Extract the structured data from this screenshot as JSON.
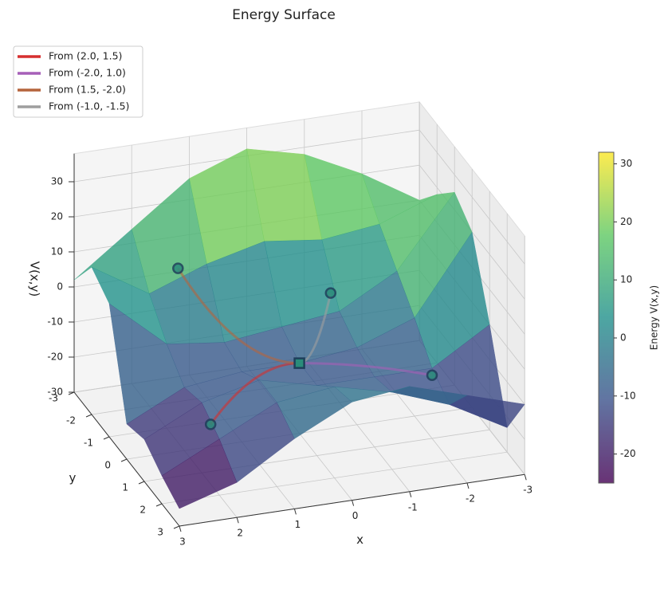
{
  "chart_data": {
    "type": "surface3d",
    "title": "Energy Surface",
    "xlabel": "x",
    "ylabel": "y",
    "zlabel": "V(x,y)",
    "x": [
      -3,
      -2,
      -1,
      0,
      1,
      2,
      3
    ],
    "y": [
      -3,
      -2,
      -1,
      0,
      1,
      2,
      3
    ],
    "z": [
      [
        10,
        20,
        28,
        32,
        26,
        14,
        2
      ],
      [
        18,
        12,
        10,
        12,
        8,
        2,
        12
      ],
      [
        25,
        5,
        -4,
        -6,
        -8,
        -6,
        8
      ],
      [
        20,
        -2,
        -8,
        -10,
        -10,
        -12,
        -20
      ],
      [
        0,
        -10,
        -10,
        -10,
        -6,
        -10,
        -18
      ],
      [
        -23,
        -14,
        -8,
        -4,
        -6,
        -14,
        -22
      ],
      [
        -10,
        -5,
        0,
        -2,
        -10,
        -20,
        -25
      ]
    ],
    "xlim": [
      -3,
      3
    ],
    "ylim": [
      -3,
      3
    ],
    "zlim": [
      -30,
      38
    ],
    "xticks": [
      -3,
      -2,
      -1,
      0,
      1,
      2,
      3
    ],
    "yticks": [
      -3,
      -2,
      -1,
      0,
      1,
      2,
      3
    ],
    "zticks": [
      -30,
      -20,
      -10,
      0,
      10,
      20,
      30
    ],
    "colorbar": {
      "label": "Energy V(x,y)",
      "clim": [
        -25,
        32
      ],
      "ticks": [
        -20,
        -10,
        0,
        10,
        20,
        30
      ]
    },
    "minimum": {
      "x": 0,
      "y": 0,
      "z": -10
    },
    "series": [
      {
        "name": "From (2.0, 1.5)",
        "color": "#d62f2f",
        "x": 2.0,
        "y": 1.5,
        "z": -13
      },
      {
        "name": "From (-2.0, 1.0)",
        "color": "#a65fb8",
        "x": -2.0,
        "y": 1.0,
        "z": -12
      },
      {
        "name": "From (1.5, -2.0)",
        "color": "#b5643c",
        "x": 1.5,
        "y": -2.0,
        "z": 8
      },
      {
        "name": "From (-1.0, -1.5)",
        "color": "#9e9e9e",
        "x": -1.0,
        "y": -1.5,
        "z": -2
      }
    ]
  }
}
